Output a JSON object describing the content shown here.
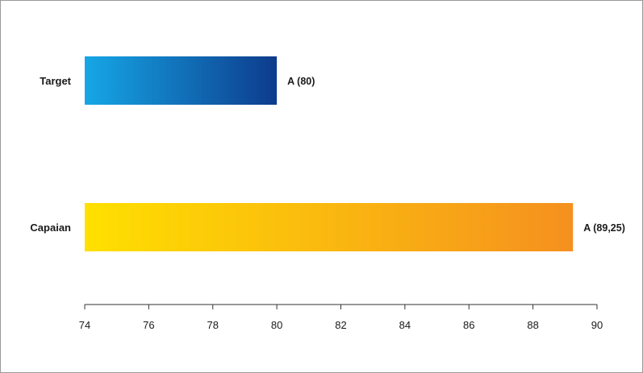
{
  "chart_data": {
    "type": "bar",
    "orientation": "horizontal",
    "categories": [
      "Target",
      "Capaian"
    ],
    "values": [
      80,
      89.25
    ],
    "data_labels": [
      "A (80)",
      "A (89,25)"
    ],
    "colors": [
      {
        "from": "#16a7e6",
        "to": "#0d3b8c"
      },
      {
        "from": "#ffe000",
        "to": "#f5901f"
      }
    ],
    "xlim": [
      74,
      90
    ],
    "xticks": [
      "74",
      "76",
      "78",
      "80",
      "82",
      "84",
      "86",
      "88",
      "90"
    ],
    "grid": false,
    "legend": "none"
  }
}
